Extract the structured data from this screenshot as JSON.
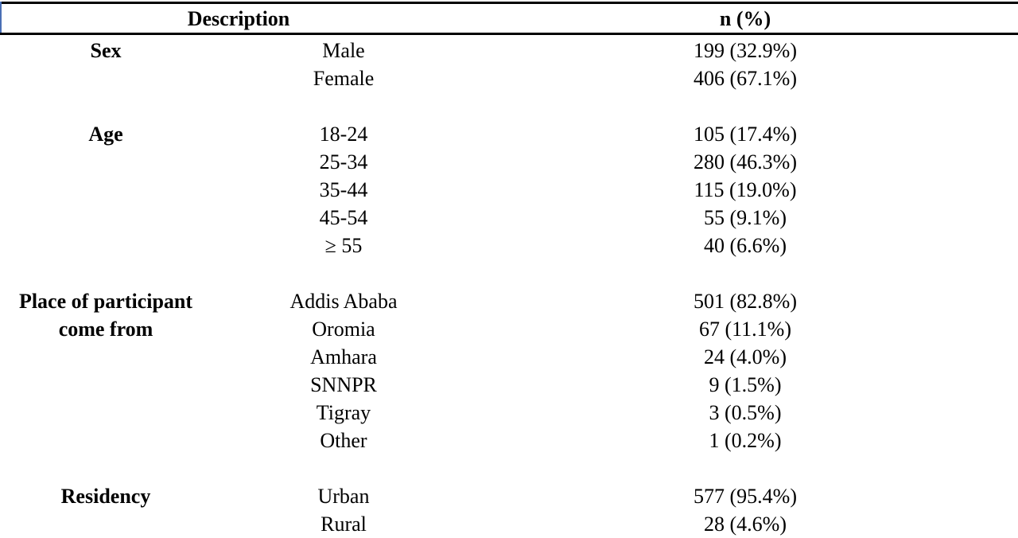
{
  "header": {
    "columns": [
      "Description",
      "n (%)"
    ]
  },
  "groups": [
    {
      "label": "Sex",
      "rows": [
        [
          "Male",
          "199 (32.9%)"
        ],
        [
          "Female",
          "406 (67.1%)"
        ]
      ]
    },
    {
      "label": "Age",
      "rows": [
        [
          "18-24",
          "105 (17.4%)"
        ],
        [
          "25-34",
          "280 (46.3%)"
        ],
        [
          "35-44",
          "115 (19.0%)"
        ],
        [
          "45-54",
          "55 (9.1%)"
        ],
        [
          "≥ 55",
          "40 (6.6%)"
        ]
      ]
    },
    {
      "label": "Place of participant come from",
      "rows": [
        [
          "Addis Ababa",
          "501 (82.8%)"
        ],
        [
          "Oromia",
          "67 (11.1%)"
        ],
        [
          "Amhara",
          "24 (4.0%)"
        ],
        [
          "SNNPR",
          "9 (1.5%)"
        ],
        [
          "Tigray",
          "3 (0.5%)"
        ],
        [
          "Other",
          "1 (0.2%)"
        ]
      ]
    },
    {
      "label": "Residency",
      "rows": [
        [
          "Urban",
          "577 (95.4%)"
        ],
        [
          "Rural",
          "28 (4.6%)"
        ]
      ]
    }
  ]
}
